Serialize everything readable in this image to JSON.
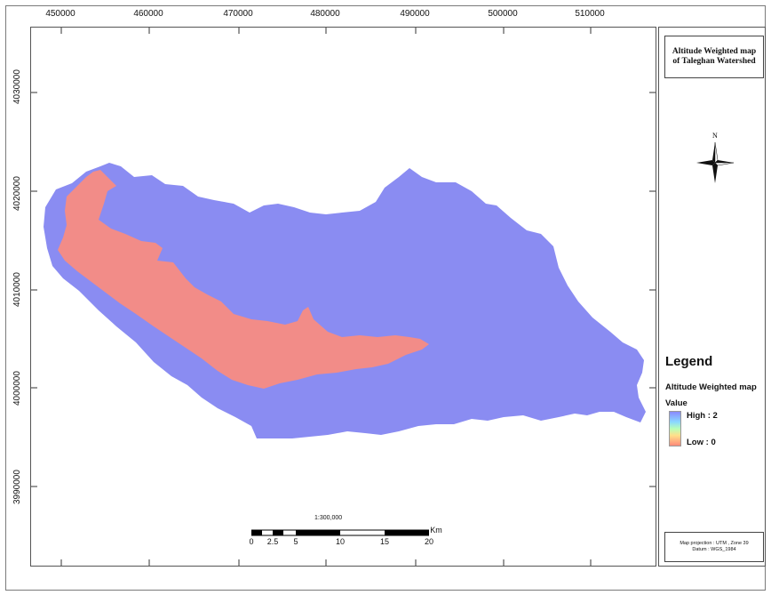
{
  "map": {
    "title_line1": "Altitude Weighted map",
    "title_line2": "of Taleghan Watershed",
    "x_ticks": [
      "450000",
      "460000",
      "470000",
      "480000",
      "490000",
      "500000",
      "510000"
    ],
    "y_ticks": [
      "4030000",
      "4020000",
      "4010000",
      "4000000",
      "3990000"
    ],
    "colors": {
      "high": "#8a8cf2",
      "low": "#f28c88"
    },
    "north_label": "N",
    "legend": {
      "title": "Legend",
      "layer": "Altitude Weighted map",
      "value_label": "Value",
      "high": "High : 2",
      "low": "Low : 0"
    },
    "scale": {
      "ratio": "1:300,000",
      "labels": [
        "0",
        "2.5",
        "5",
        "10",
        "15",
        "20"
      ],
      "unit": "Km"
    },
    "projection": {
      "line1": "Map projection : UTM , Zone 39",
      "line2": "Datum : WGS_1984"
    }
  }
}
